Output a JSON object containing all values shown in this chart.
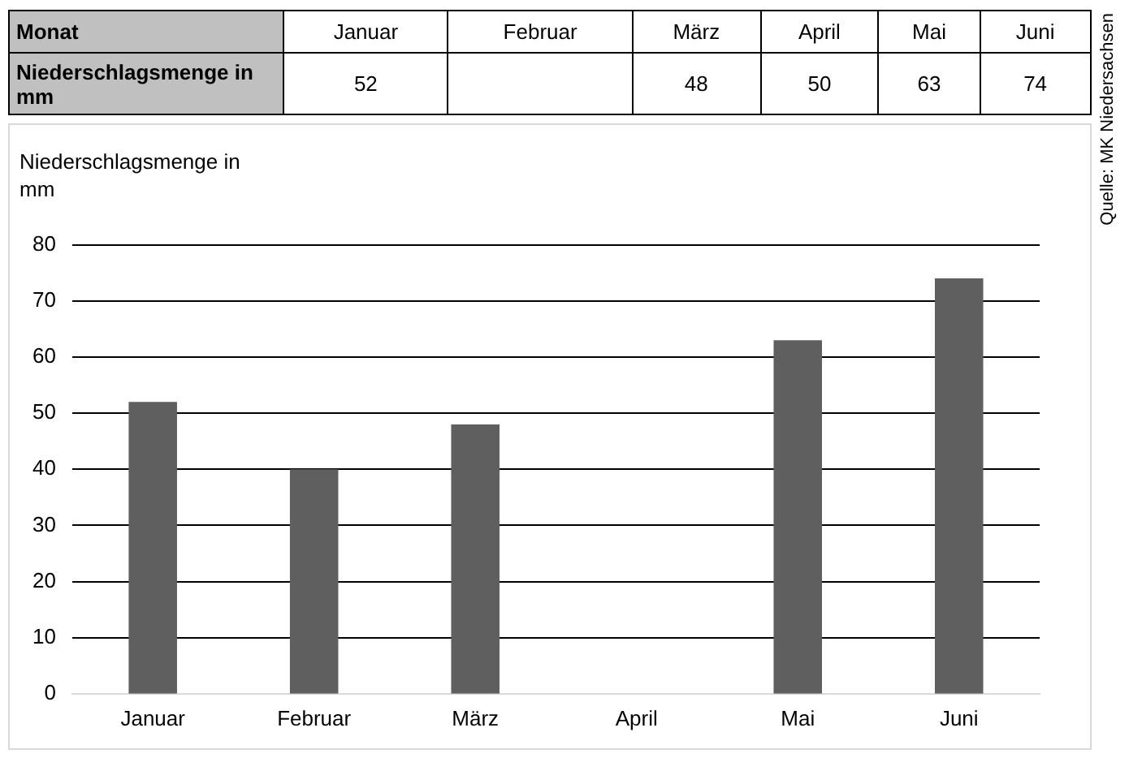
{
  "chart_data": [
    {
      "type": "other",
      "xlabel": "Monat",
      "ylabel": "Niederschlagsmenge in mm",
      "categories": [
        "Januar",
        "Februar",
        "März",
        "April",
        "Mai",
        "Juni"
      ],
      "values": [
        52,
        null,
        48,
        50,
        63,
        74
      ],
      "data_labels": true
    },
    {
      "type": "bar",
      "ylabel": "Niederschlagsmenge in mm",
      "categories": [
        "Januar",
        "Februar",
        "März",
        "April",
        "Mai",
        "Juni"
      ],
      "values": [
        52,
        40,
        48,
        null,
        63,
        74
      ],
      "color": "#5f5f5f",
      "ylim": [
        0,
        80
      ],
      "yticks": [
        0,
        10,
        20,
        30,
        40,
        50,
        60,
        70,
        80
      ],
      "grid": "y",
      "annotations": [
        "Quelle: MK Niedersachsen"
      ]
    }
  ]
}
